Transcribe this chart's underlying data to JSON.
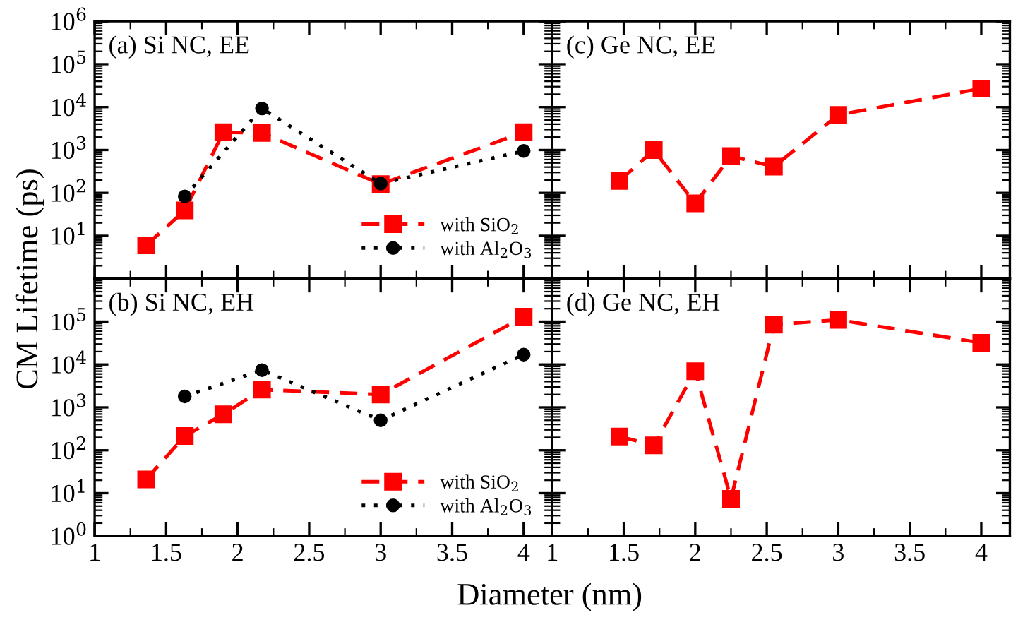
{
  "chart_data": [
    {
      "type": "line",
      "title": "(a) Si NC, EE",
      "ylabel": "CM Lifetime (ps)",
      "log": "y",
      "xlim": [
        1,
        4.2
      ],
      "ylim": [
        1,
        1000000
      ],
      "tick_labels": "y",
      "legend": "bottom right",
      "xticks": [
        1,
        1.5,
        2,
        2.5,
        3,
        3.5,
        4
      ],
      "yticks": [
        {
          "value": 1,
          "label": null
        },
        {
          "value": 10,
          "label": "10$^{1}$"
        },
        {
          "value": 100,
          "label": "10$^{2}$"
        },
        {
          "value": 1000,
          "label": "10$^{3}$"
        },
        {
          "value": 10000,
          "label": "10$^{4}$"
        },
        {
          "value": 100000,
          "label": "10$^{5}$"
        },
        {
          "value": 1000000,
          "label": "10$^{6}$"
        }
      ],
      "series": [
        {
          "name": "with SiO$_{2}$",
          "color": "#ff0000",
          "marker": "square",
          "line_style": "dashed",
          "x": [
            1.36,
            1.63,
            1.9,
            2.17,
            3.0,
            4.0
          ],
          "values": [
            6,
            39,
            2600,
            2500,
            160,
            2600
          ]
        },
        {
          "name": "with Al$_{2}$O$_{3}$",
          "color": "#000000",
          "marker": "circle",
          "line_style": "dotted",
          "x": [
            1.63,
            2.17,
            3.0,
            4.0
          ],
          "values": [
            83,
            9300,
            165,
            950
          ]
        }
      ]
    },
    {
      "type": "line",
      "title": "(b) Si NC, EH",
      "xlabel": "Diameter (nm)",
      "log": "y",
      "xlim": [
        1,
        4.2
      ],
      "ylim": [
        1,
        1000000
      ],
      "legend": "bottom right",
      "xticks": [
        1,
        1.5,
        2,
        2.5,
        3,
        3.5,
        4
      ],
      "yticks": [
        {
          "value": 1,
          "label": "10$^{0}$"
        },
        {
          "value": 10,
          "label": "10$^{1}$"
        },
        {
          "value": 100,
          "label": "10$^{2}$"
        },
        {
          "value": 1000,
          "label": "10$^{3}$"
        },
        {
          "value": 10000,
          "label": "10$^{4}$"
        },
        {
          "value": 100000,
          "label": "10$^{5}$"
        },
        {
          "value": 1000000,
          "label": null
        }
      ],
      "series": [
        {
          "name": "with SiO$_{2}$",
          "color": "#ff0000",
          "marker": "square",
          "line_style": "dashed",
          "x": [
            1.36,
            1.63,
            1.9,
            2.17,
            3.0,
            4.0
          ],
          "values": [
            21,
            215,
            690,
            2600,
            2000,
            130000
          ]
        },
        {
          "name": "with Al$_{2}$O$_{3}$",
          "color": "#000000",
          "marker": "circle",
          "line_style": "dotted",
          "x": [
            1.63,
            2.17,
            3.0,
            4.0
          ],
          "values": [
            1800,
            7400,
            500,
            17000
          ]
        }
      ]
    },
    {
      "type": "line",
      "title": "(c) Ge NC, EE",
      "log": "y",
      "xlim": [
        1,
        4.2
      ],
      "ylim": [
        1,
        1000000
      ],
      "tick_labels": false,
      "xticks": [
        {
          "value": 1,
          "label": null
        },
        {
          "value": 1.5,
          "label": null
        },
        {
          "value": 2,
          "label": null
        },
        {
          "value": 2.5,
          "label": null
        },
        {
          "value": 3,
          "label": null
        },
        {
          "value": 3.5,
          "label": null
        },
        {
          "value": 4,
          "label": null
        }
      ],
      "yticks": [
        {
          "value": 1,
          "label": null
        },
        {
          "value": 10,
          "label": null
        },
        {
          "value": 100,
          "label": null
        },
        {
          "value": 1000,
          "label": null
        },
        {
          "value": 10000,
          "label": null
        },
        {
          "value": 100000,
          "label": null
        },
        {
          "value": 1000000,
          "label": null
        }
      ],
      "series": [
        {
          "color": "#ff0000",
          "marker": "square",
          "line_style": "dashed",
          "x": [
            1.47,
            1.71,
            2.0,
            2.25,
            2.55,
            3.0,
            4.0
          ],
          "values": [
            190,
            1000,
            57,
            720,
            410,
            6600,
            27000
          ]
        }
      ]
    },
    {
      "type": "line",
      "title": "(d) Ge NC, EH",
      "log": "y",
      "xlim": [
        1,
        4.2
      ],
      "ylim": [
        1,
        1000000
      ],
      "tick_labels": "x",
      "xticks": [
        1,
        1.5,
        2,
        2.5,
        3,
        3.5,
        4
      ],
      "yticks": [
        {
          "value": 1,
          "label": null
        },
        {
          "value": 10,
          "label": null
        },
        {
          "value": 100,
          "label": null
        },
        {
          "value": 1000,
          "label": null
        },
        {
          "value": 10000,
          "label": null
        },
        {
          "value": 100000,
          "label": null
        },
        {
          "value": 1000000,
          "label": null
        }
      ],
      "series": [
        {
          "color": "#ff0000",
          "marker": "square",
          "line_style": "dashed",
          "x": [
            1.47,
            1.71,
            2.0,
            2.25,
            2.55,
            3.0,
            4.0
          ],
          "values": [
            210,
            130,
            7000,
            7.4,
            85000,
            110000,
            32000
          ]
        }
      ]
    }
  ]
}
